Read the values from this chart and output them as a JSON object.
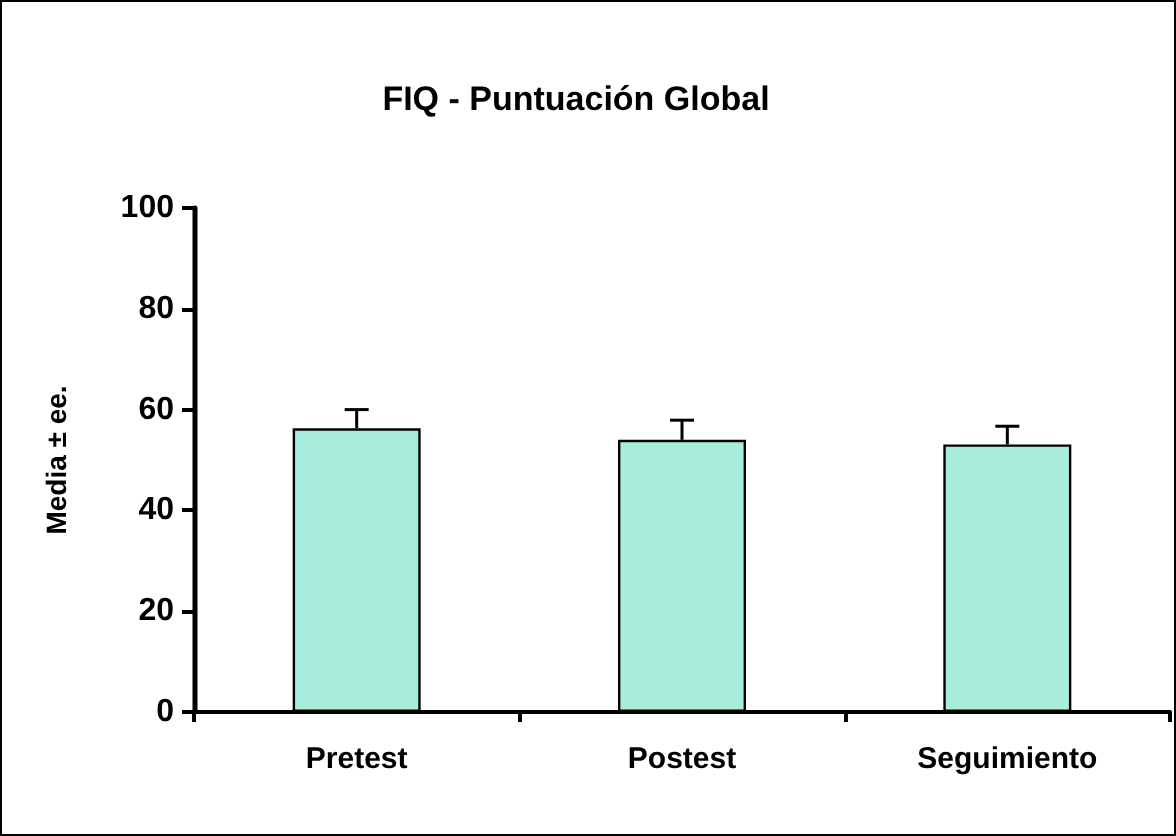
{
  "chart_data": {
    "type": "bar",
    "title": "FIQ - Puntuación Global",
    "ylabel": "Media ± ee.",
    "categories": [
      "Pretest",
      "Postest",
      "Seguimiento"
    ],
    "series": [
      {
        "color": "#a8ecdc",
        "values": [
          56.3,
          54.0,
          53.1
        ],
        "errors": [
          [
            56.3,
            60.0
          ],
          [
            54.0,
            57.9
          ],
          [
            53.1,
            56.7
          ]
        ]
      }
    ],
    "ylim": [
      0,
      100
    ],
    "yticks": [
      0,
      20,
      40,
      60,
      80,
      100
    ],
    "grid": false
  }
}
